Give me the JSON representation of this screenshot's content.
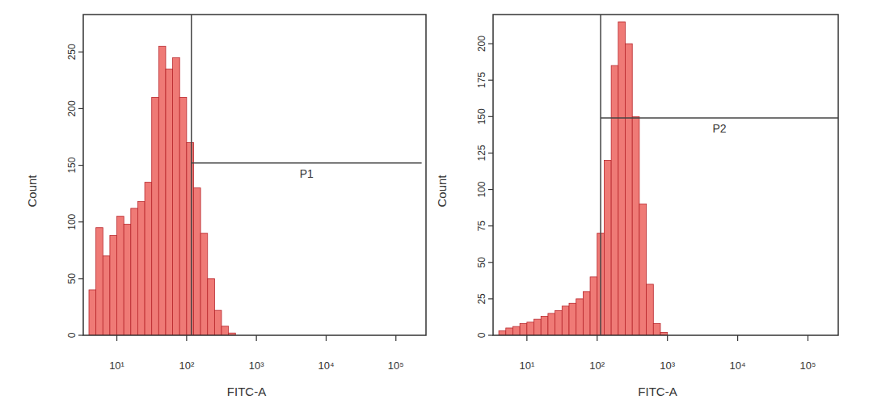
{
  "chart_data": [
    {
      "type": "histogram",
      "x_label": "FITC-A",
      "y_label": "Count",
      "log": "x",
      "color": "#ef7a76",
      "bins": [
        3.98,
        5.01,
        6.31,
        7.94,
        10,
        12.59,
        15.85,
        19.95,
        25.12,
        31.62,
        39.81,
        50.12,
        63.1,
        79.43,
        100,
        125.89,
        158.49,
        199.53,
        251.19,
        316.23,
        398.11,
        501.19
      ],
      "counts": [
        40,
        95,
        70,
        88,
        105,
        98,
        112,
        118,
        135,
        210,
        255,
        235,
        245,
        210,
        170,
        130,
        90,
        50,
        22,
        8,
        2
      ],
      "xlim": [
        3.3,
        270000
      ],
      "xticks": [
        {
          "value": 10,
          "label": "10¹"
        },
        {
          "value": 100,
          "label": "10²"
        },
        {
          "value": 1000,
          "label": "10³"
        },
        {
          "value": 10000,
          "label": "10⁴"
        },
        {
          "value": 100000,
          "label": "10⁵"
        }
      ],
      "ylim": [
        0,
        283
      ],
      "yticks": [
        0,
        50,
        100,
        150,
        200,
        250
      ],
      "gate": {
        "label": "P1",
        "x": [
          117,
          234000
        ],
        "y": 152
      }
    },
    {
      "type": "histogram",
      "x_label": "FITC-A",
      "y_label": "Count",
      "log": "x",
      "color": "#ef7a76",
      "bins": [
        3.98,
        5.01,
        6.31,
        7.94,
        10,
        12.59,
        15.85,
        19.95,
        25.12,
        31.62,
        39.81,
        50.12,
        63.1,
        79.43,
        100,
        125.89,
        158.49,
        199.53,
        251.19,
        316.23,
        398.11,
        501.19,
        630.96,
        794.33,
        1000
      ],
      "counts": [
        3,
        5,
        6,
        8,
        9,
        11,
        13,
        15,
        17,
        20,
        22,
        25,
        30,
        40,
        70,
        120,
        185,
        215,
        200,
        150,
        90,
        35,
        8,
        2
      ],
      "xlim": [
        3.3,
        270000
      ],
      "xticks": [
        {
          "value": 10,
          "label": "10¹"
        },
        {
          "value": 100,
          "label": "10²"
        },
        {
          "value": 1000,
          "label": "10³"
        },
        {
          "value": 10000,
          "label": "10⁴"
        },
        {
          "value": 100000,
          "label": "10⁵"
        }
      ],
      "ylim": [
        0,
        220
      ],
      "yticks": [
        0,
        25,
        50,
        75,
        100,
        125,
        150,
        175,
        200
      ],
      "gate": {
        "label": "P2",
        "x": [
          112,
          270000
        ],
        "y": 149
      }
    }
  ]
}
